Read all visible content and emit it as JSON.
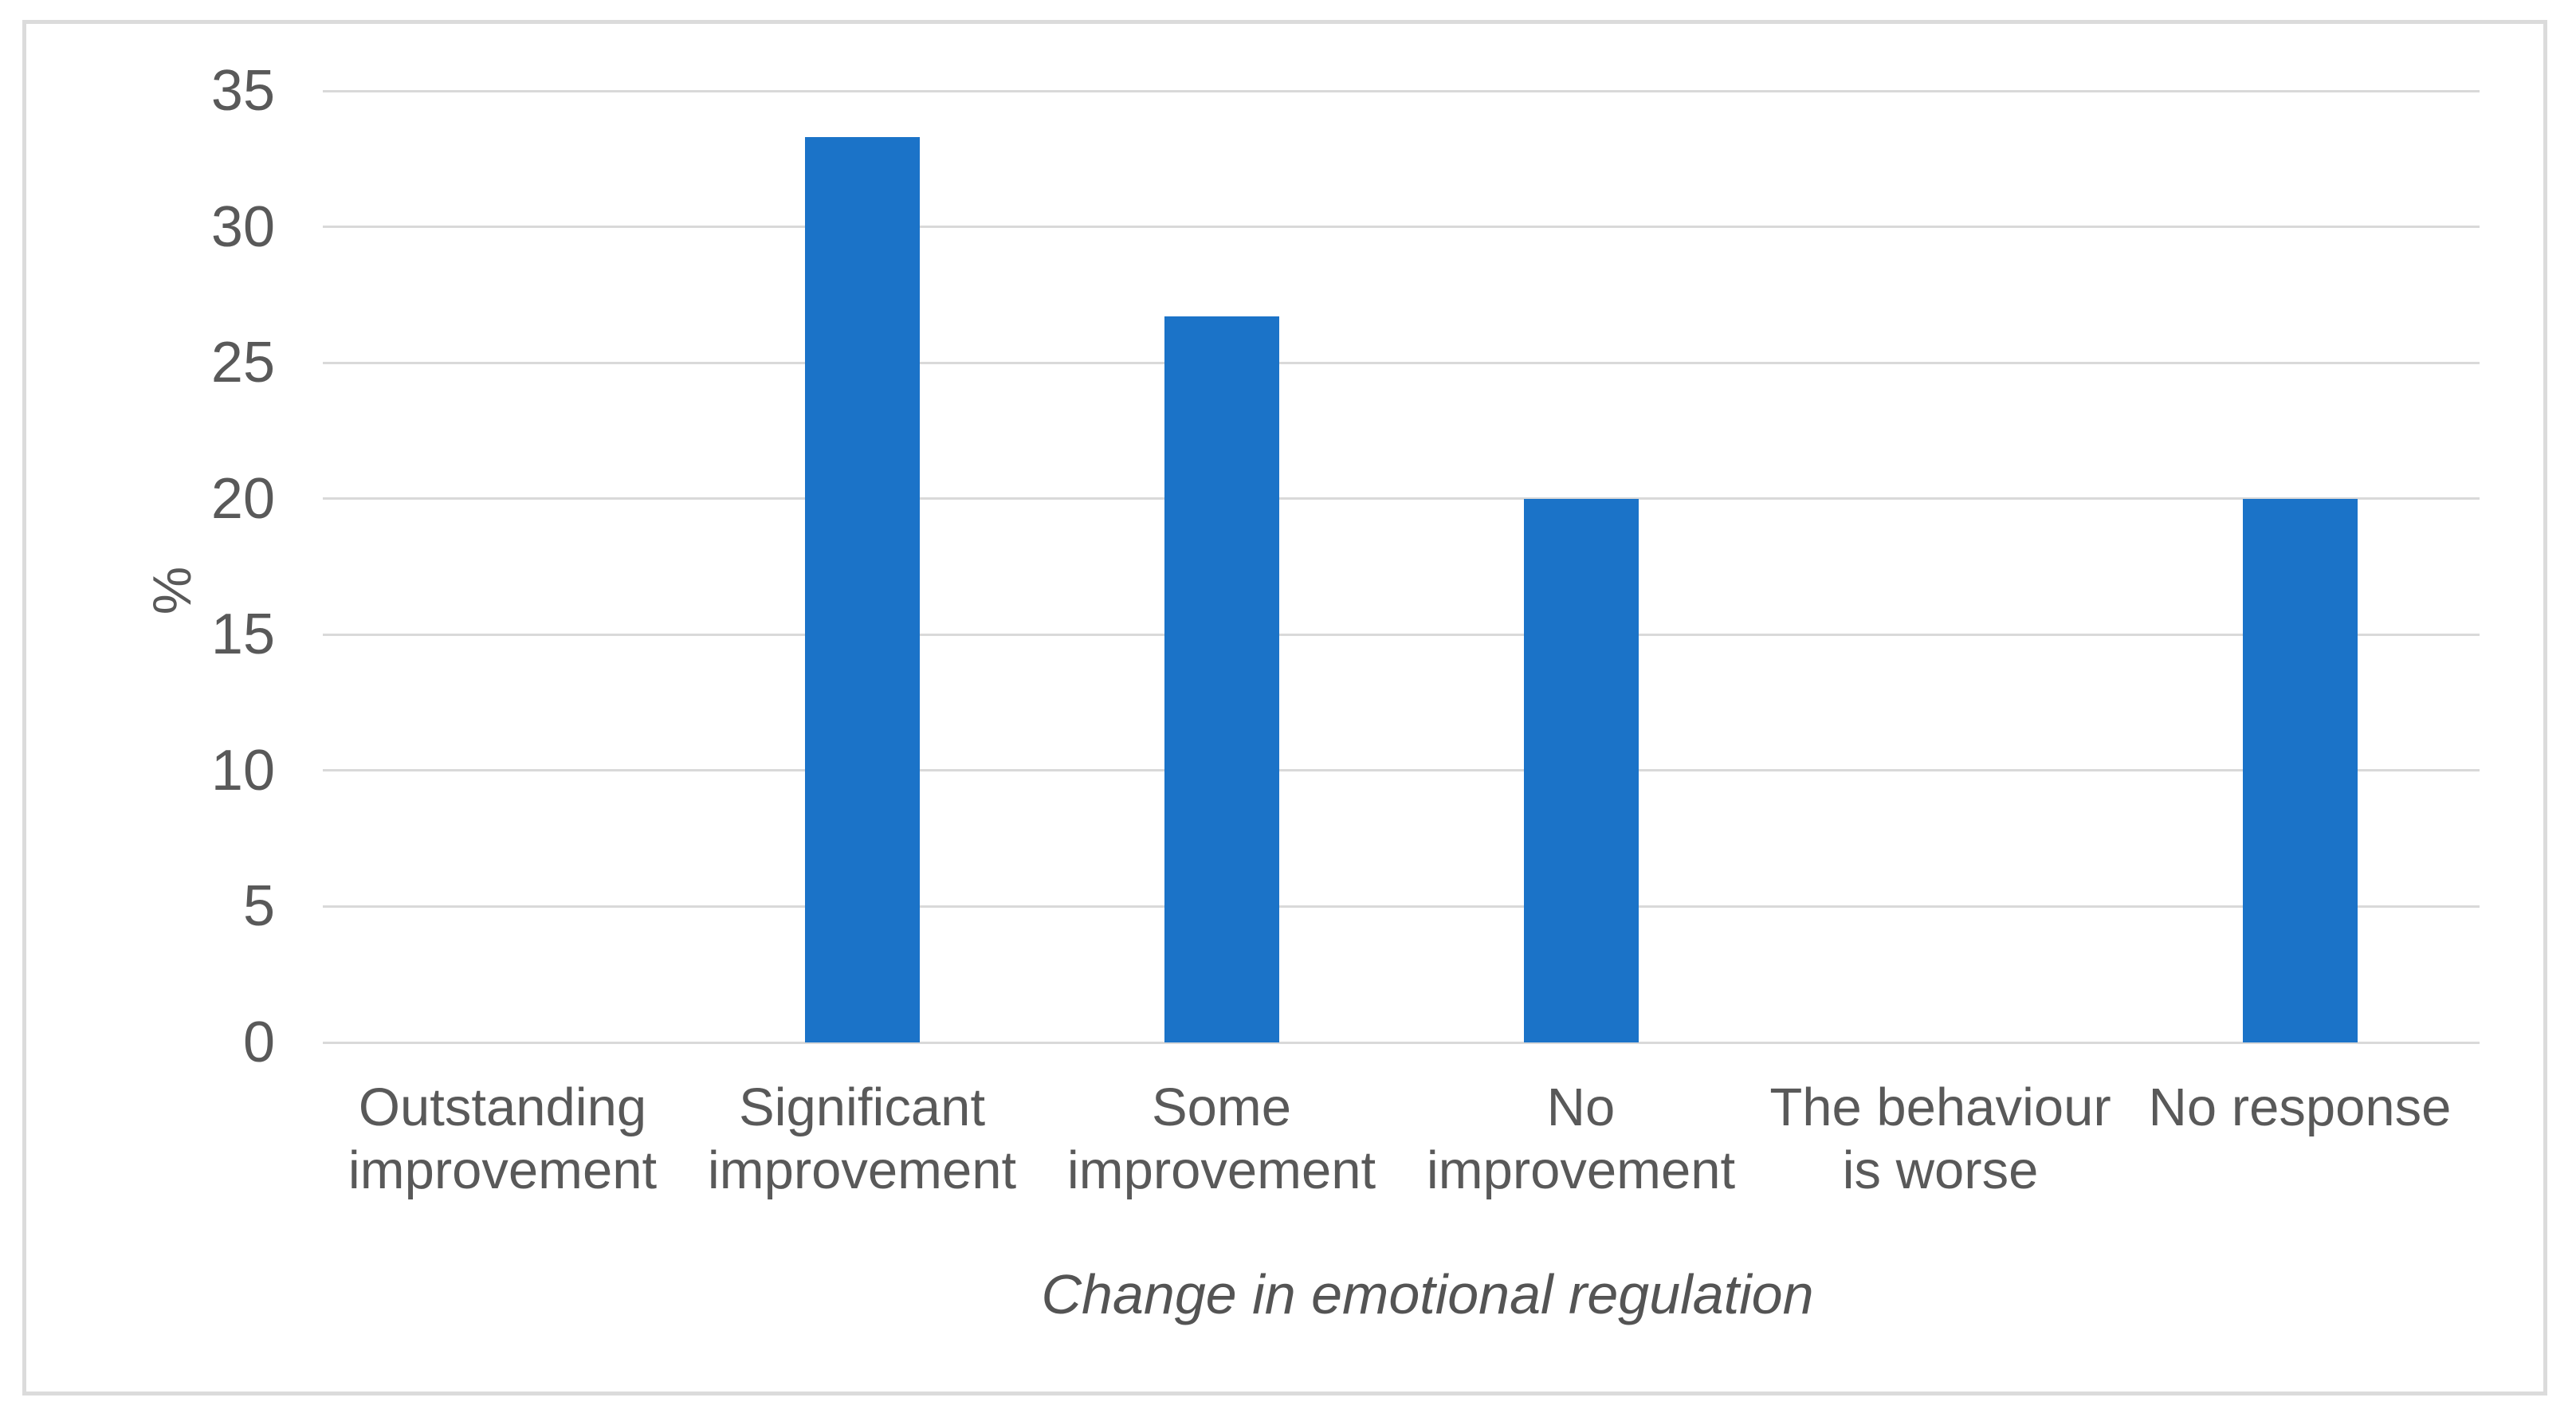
{
  "chart_data": {
    "type": "bar",
    "title": "",
    "categories": [
      "Outstanding improvement",
      "Significant improvement",
      "Some improvement",
      "No improvement",
      "The behaviour is worse",
      "No response"
    ],
    "category_label_lines": [
      [
        "Outstanding",
        "improvement"
      ],
      [
        "Significant",
        "improvement"
      ],
      [
        "Some",
        "improvement"
      ],
      [
        "No",
        "improvement"
      ],
      [
        "The behaviour",
        "is worse"
      ],
      [
        "No response"
      ]
    ],
    "values": [
      0,
      33.3,
      26.7,
      20,
      0,
      20
    ],
    "xlabel": "Change in emotional regulation",
    "ylabel": "%",
    "ylim": [
      0,
      35
    ],
    "yticks": [
      0,
      5,
      10,
      15,
      20,
      25,
      30,
      35
    ],
    "grid": "horizontal",
    "legend_position": "none",
    "colors": {
      "bar": "#1B73C8",
      "gridline": "#D9D9D9",
      "axis_text": "#595959",
      "frame_border": "#DBDBDB",
      "background": "#FFFFFF"
    }
  }
}
